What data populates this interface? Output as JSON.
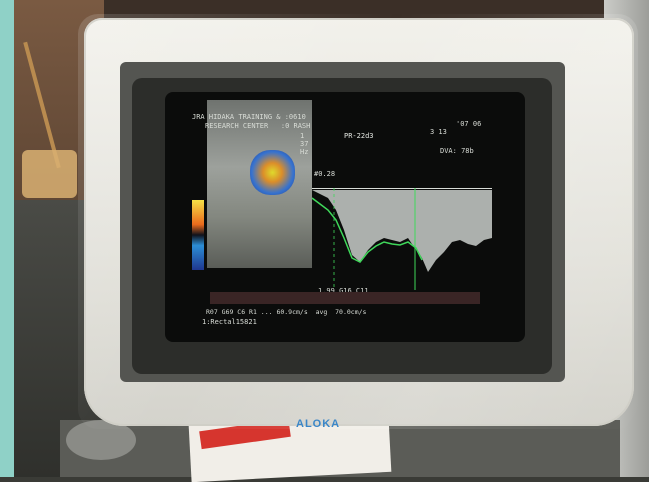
{
  "monitor": {
    "brand": "ALOKA"
  },
  "screen": {
    "header_line1": "JRA HIDAKA TRAINING & :0610",
    "header_line2": "RESEARCH CENTER   :0 RASH",
    "mode_label": "PR-22d3",
    "right_top": "'07 06",
    "right_mid": "3 13",
    "dva_label": "DVA: 78b",
    "velocity_scale": "#0.28",
    "depth_readout": "1.99 G16 C11",
    "measure_line": "R07 G69 C6 R1 ... 60.9cm/s  avg  70.0cm/s",
    "bottom_line": "1:Rectal15821",
    "left_small_1": "1",
    "left_small_2": "37",
    "left_small_3": "Hz"
  },
  "colors": {
    "bezel": "#e9e8e1",
    "screen": "#0b0c0b",
    "brand": "#3a86c8",
    "spectrum_trace": "#3fd85a",
    "spectrum_fill": "#c9ceca"
  }
}
